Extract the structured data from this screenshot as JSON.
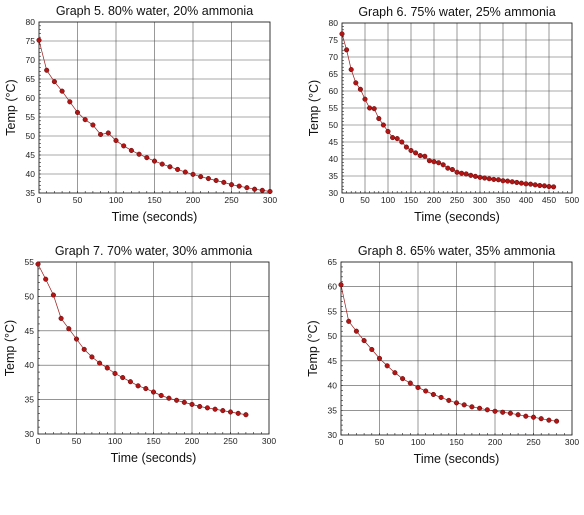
{
  "colors": {
    "marker": "#b31515",
    "line": "#9b1a1a",
    "grid": "#555555"
  },
  "chart_data": [
    {
      "type": "line",
      "title": "Graph 5. 80% water, 20% ammonia",
      "xlabel": "Time (seconds)",
      "ylabel": "Temp (°C)",
      "xlim": [
        0,
        300
      ],
      "ylim": [
        35,
        80
      ],
      "xticks": [
        0,
        50,
        100,
        150,
        200,
        250,
        300
      ],
      "yticks": [
        35,
        40,
        45,
        50,
        55,
        60,
        65,
        70,
        75,
        80
      ],
      "grid": true,
      "series": [
        {
          "x": [
            0,
            10,
            20,
            30,
            40,
            50,
            60,
            70,
            80,
            90,
            100,
            110,
            120,
            130,
            140,
            150,
            160,
            170,
            180,
            190,
            200,
            210,
            220,
            230,
            240,
            250,
            260,
            270,
            280,
            290,
            300
          ],
          "y": [
            75.2,
            67.3,
            64.3,
            61.8,
            59.0,
            56.2,
            54.3,
            52.9,
            50.4,
            50.8,
            48.8,
            47.4,
            46.2,
            45.2,
            44.3,
            43.4,
            42.6,
            41.9,
            41.2,
            40.5,
            39.9,
            39.3,
            38.8,
            38.3,
            37.8,
            37.2,
            36.8,
            36.4,
            36.0,
            35.7,
            35.4
          ]
        }
      ]
    },
    {
      "type": "line",
      "title": "Graph 6. 75% water, 25% ammonia",
      "xlabel": "Time (seconds)",
      "ylabel": "Temp (°C)",
      "xlim": [
        0,
        500
      ],
      "ylim": [
        30,
        80
      ],
      "xticks": [
        0,
        50,
        100,
        150,
        200,
        250,
        300,
        350,
        400,
        450,
        500
      ],
      "yticks": [
        30,
        35,
        40,
        45,
        50,
        55,
        60,
        65,
        70,
        75,
        80
      ],
      "grid": true,
      "series": [
        {
          "x": [
            0,
            10,
            20,
            30,
            40,
            50,
            60,
            70,
            80,
            90,
            100,
            110,
            120,
            130,
            140,
            150,
            160,
            170,
            180,
            190,
            200,
            210,
            220,
            230,
            240,
            250,
            260,
            270,
            280,
            290,
            300,
            310,
            320,
            330,
            340,
            350,
            360,
            370,
            380,
            390,
            400,
            410,
            420,
            430,
            440,
            450,
            460
          ],
          "y": [
            76.8,
            72.1,
            66.3,
            62.4,
            60.5,
            57.6,
            55.0,
            54.8,
            51.9,
            50.0,
            48.1,
            46.3,
            46.0,
            45.0,
            43.5,
            42.5,
            41.8,
            41.0,
            40.8,
            39.5,
            39.2,
            38.9,
            38.3,
            37.3,
            36.9,
            36.1,
            35.8,
            35.6,
            35.2,
            34.9,
            34.6,
            34.4,
            34.2,
            34.0,
            33.9,
            33.6,
            33.5,
            33.3,
            33.1,
            32.9,
            32.7,
            32.6,
            32.4,
            32.2,
            32.1,
            31.9,
            31.8
          ]
        }
      ]
    },
    {
      "type": "line",
      "title": "Graph 7. 70% water, 30% ammonia",
      "xlabel": "Time (seconds)",
      "ylabel": "Temp (°C)",
      "xlim": [
        0,
        300
      ],
      "ylim": [
        30,
        55
      ],
      "xticks": [
        0,
        50,
        100,
        150,
        200,
        250,
        300
      ],
      "yticks": [
        30,
        35,
        40,
        45,
        50,
        55
      ],
      "grid": true,
      "series": [
        {
          "x": [
            0,
            10,
            20,
            30,
            40,
            50,
            60,
            70,
            80,
            90,
            100,
            110,
            120,
            130,
            140,
            150,
            160,
            170,
            180,
            190,
            200,
            210,
            220,
            230,
            240,
            250,
            260,
            270
          ],
          "y": [
            54.7,
            52.5,
            50.2,
            46.8,
            45.3,
            43.8,
            42.3,
            41.2,
            40.3,
            39.6,
            38.8,
            38.2,
            37.6,
            37.0,
            36.6,
            36.1,
            35.6,
            35.2,
            34.9,
            34.6,
            34.3,
            34.0,
            33.8,
            33.6,
            33.4,
            33.2,
            33.0,
            32.8
          ]
        }
      ]
    },
    {
      "type": "line",
      "title": "Graph 8. 65% water, 35% ammonia",
      "xlabel": "Time (seconds)",
      "ylabel": "Temp (°C)",
      "xlim": [
        0,
        300
      ],
      "ylim": [
        30,
        65
      ],
      "xticks": [
        0,
        50,
        100,
        150,
        200,
        250,
        300
      ],
      "yticks": [
        30,
        35,
        40,
        45,
        50,
        55,
        60,
        65
      ],
      "grid": true,
      "series": [
        {
          "x": [
            0,
            10,
            20,
            30,
            40,
            50,
            60,
            70,
            80,
            90,
            100,
            110,
            120,
            130,
            140,
            150,
            160,
            170,
            180,
            190,
            200,
            210,
            220,
            230,
            240,
            250,
            260,
            270,
            280
          ],
          "y": [
            60.4,
            53.0,
            51.0,
            49.1,
            47.3,
            45.5,
            44.0,
            42.6,
            41.4,
            40.5,
            39.6,
            38.9,
            38.2,
            37.6,
            37.0,
            36.5,
            36.1,
            35.7,
            35.4,
            35.1,
            34.8,
            34.6,
            34.4,
            34.1,
            33.8,
            33.6,
            33.3,
            33.0,
            32.8
          ]
        }
      ]
    }
  ]
}
